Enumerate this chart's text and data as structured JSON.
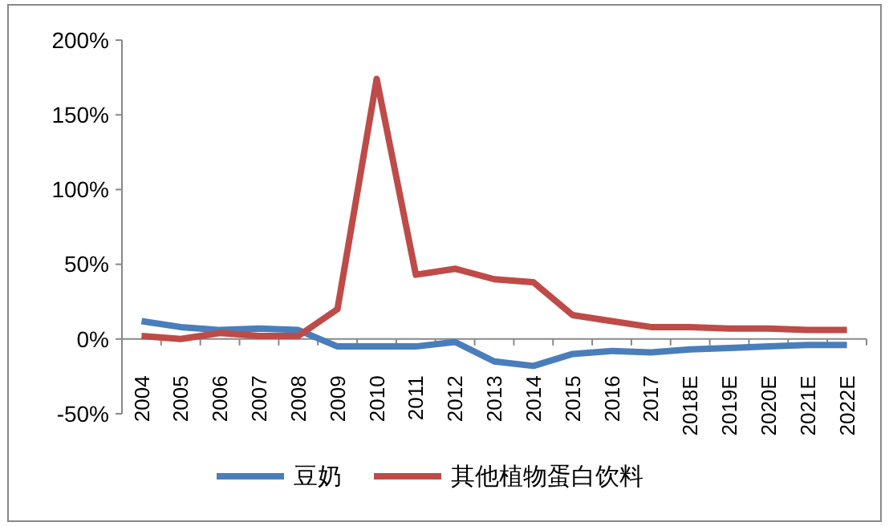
{
  "chart_data": {
    "type": "line",
    "categories": [
      "2004",
      "2005",
      "2006",
      "2007",
      "2008",
      "2009",
      "2010",
      "2011",
      "2012",
      "2013",
      "2014",
      "2015",
      "2016",
      "2017",
      "2018E",
      "2019E",
      "2020E",
      "2021E",
      "2022E"
    ],
    "series": [
      {
        "name": "豆奶",
        "color": "#4a7ebb",
        "values": [
          12,
          8,
          6,
          7,
          6,
          -5,
          -5,
          -5,
          -2,
          -15,
          -18,
          -10,
          -8,
          -9,
          -7,
          -6,
          -5,
          -4,
          -4
        ]
      },
      {
        "name": "其他植物蛋白饮料",
        "color": "#be4b48",
        "values": [
          2,
          0,
          4,
          2,
          2,
          20,
          174,
          43,
          47,
          40,
          38,
          16,
          12,
          8,
          8,
          7,
          7,
          6,
          6
        ]
      }
    ],
    "ylim": [
      -50,
      200
    ],
    "yticks": [
      {
        "value": -50,
        "label": "-50%"
      },
      {
        "value": 0,
        "label": "0%"
      },
      {
        "value": 50,
        "label": "50%"
      },
      {
        "value": 100,
        "label": "100%"
      },
      {
        "value": 150,
        "label": "150%"
      },
      {
        "value": 200,
        "label": "200%"
      }
    ],
    "legend": "bottom",
    "marker": "none",
    "line_style": "solid",
    "grid": false
  }
}
